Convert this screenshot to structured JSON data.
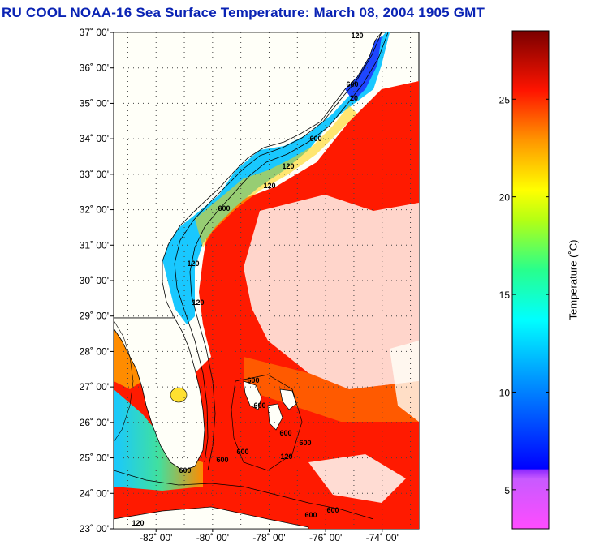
{
  "title": "RU COOL  NOAA-16  Sea Surface Temperature:  March 08, 2004 1905 GMT",
  "colors": {
    "title": "#0a23b4",
    "land": "#fffff8",
    "ocean_cold": "#1e78ff",
    "ocean_warm": "#ff1a00"
  },
  "map": {
    "lat_labels": [
      "37˚ 00'",
      "36˚ 00'",
      "35˚ 00'",
      "34˚ 00'",
      "33˚ 00'",
      "32˚ 00'",
      "31˚ 00'",
      "30˚ 00'",
      "29˚ 00'",
      "28˚ 00'",
      "27˚ 00'",
      "26˚ 00'",
      "25˚ 00'",
      "24˚ 00'",
      "23˚ 00'"
    ],
    "lon_labels": [
      "-82˚ 00'",
      "-80˚ 00'",
      "-78˚ 00'",
      "-76˚ 00'",
      "-74˚ 00'"
    ],
    "lat_range": [
      23,
      37
    ],
    "lon_range": [
      -83.5,
      -72.7
    ],
    "isobath_labels": [
      "120",
      "600",
      "20",
      "600",
      "120",
      "120",
      "600",
      "120",
      "120",
      "600",
      "600",
      "600",
      "600",
      "120",
      "600",
      "600",
      "600",
      "120",
      "600",
      "600"
    ]
  },
  "colorbar": {
    "label": "Temperature (˚C)",
    "ticks": [
      "5",
      "10",
      "15",
      "20",
      "25"
    ],
    "tick_values": [
      5,
      10,
      15,
      20,
      25
    ],
    "range": [
      3,
      28.5
    ]
  }
}
